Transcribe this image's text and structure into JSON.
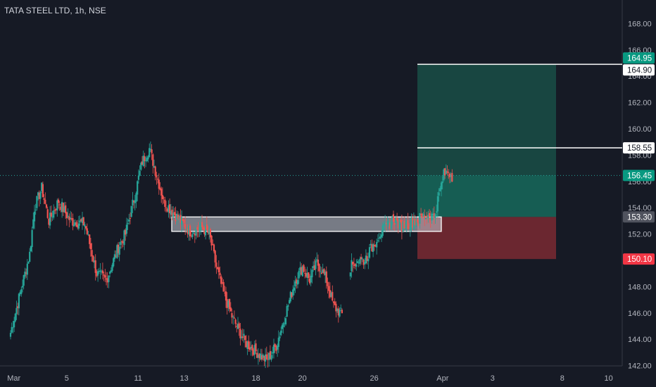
{
  "header": {
    "title": "TATA STEEL LTD, 1h, NSE"
  },
  "colors": {
    "background": "#161a25",
    "grid": "#2a2e39",
    "up": "#26a69a",
    "down": "#ef5350",
    "text": "#b2b5be",
    "profit_zone": "#1a5a4d",
    "loss_zone": "#7a2a33"
  },
  "chart_data": {
    "type": "candlestick",
    "ylim": [
      142,
      169
    ],
    "x_ticks": [
      "Mar",
      "5",
      "11",
      "13",
      "18",
      "20",
      "26",
      "Apr",
      "3",
      "8",
      "10"
    ],
    "y_ticks": [
      "142.00",
      "144.00",
      "146.00",
      "148.00",
      "150.00",
      "152.00",
      "154.00",
      "156.00",
      "158.00",
      "160.00",
      "162.00",
      "164.00",
      "166.00",
      "168.00"
    ],
    "close_segments": [
      [
        [
          0,
          144.5
        ],
        [
          8,
          147.5
        ],
        [
          16,
          150.5
        ],
        [
          20,
          154.0
        ],
        [
          26,
          155.5
        ],
        [
          32,
          153.0
        ],
        [
          40,
          154.5
        ],
        [
          50,
          153.0
        ],
        [
          62,
          152.8
        ],
        [
          72,
          149.0
        ],
        [
          80,
          148.5
        ],
        [
          90,
          151.0
        ],
        [
          96,
          152.0
        ],
        [
          104,
          155.0
        ],
        [
          110,
          157.5
        ],
        [
          116,
          158.5
        ],
        [
          122,
          156.5
        ],
        [
          128,
          154.5
        ],
        [
          140,
          153.2
        ],
        [
          150,
          152.2
        ],
        [
          160,
          152.5
        ],
        [
          166,
          152.0
        ],
        [
          172,
          149.5
        ],
        [
          178,
          147.5
        ],
        [
          186,
          145.5
        ],
        [
          196,
          143.8
        ],
        [
          206,
          143.0
        ],
        [
          214,
          142.4
        ],
        [
          222,
          143.5
        ],
        [
          230,
          146.0
        ],
        [
          238,
          148.5
        ],
        [
          244,
          149.5
        ],
        [
          250,
          148.5
        ],
        [
          256,
          149.8
        ],
        [
          260,
          149.3
        ],
        [
          264,
          148.5
        ],
        [
          270,
          146.5
        ],
        [
          278,
          145.8
        ]
      ],
      [
        [
          284,
          149.5
        ],
        [
          290,
          150.0
        ],
        [
          296,
          150.0
        ],
        [
          302,
          151.0
        ],
        [
          308,
          152.0
        ],
        [
          314,
          152.5
        ],
        [
          320,
          153.2
        ],
        [
          326,
          152.6
        ],
        [
          332,
          152.8
        ],
        [
          338,
          153.0
        ],
        [
          344,
          153.3
        ],
        [
          350,
          153.5
        ],
        [
          354,
          153.3
        ],
        [
          358,
          155.0
        ],
        [
          362,
          156.5
        ],
        [
          366,
          156.8
        ],
        [
          370,
          156.3
        ]
      ]
    ],
    "price_lines": {
      "stop": "150.10",
      "entry": "153.30",
      "current": "156.45",
      "target_1": "158.55",
      "target_2": "164.90",
      "target_3": "164.95"
    },
    "levels": {
      "stop": 150.1,
      "entry": 153.3,
      "current": 156.45,
      "target_1": 158.55,
      "target_2": 164.9,
      "target_3": 164.95
    },
    "zone": {
      "top": 153.3,
      "bottom": 152.2,
      "start_bar": 148,
      "end_bar": 375
    },
    "position": {
      "start_bar": 357,
      "end_bar": 466,
      "top": 164.9,
      "bottom": 150.1,
      "entry": 153.3
    }
  }
}
